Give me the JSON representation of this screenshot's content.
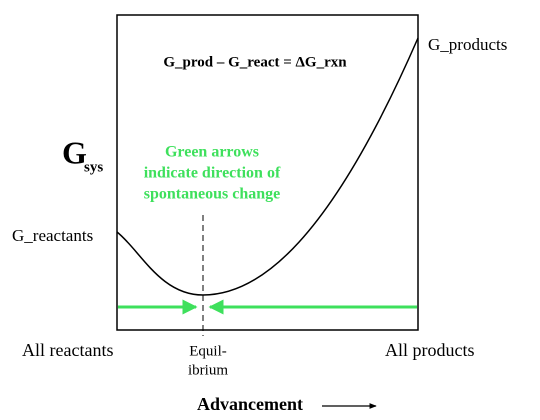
{
  "equation": "G_prod – G_react = ΔG_rxn",
  "y_axis": {
    "symbol": "G",
    "subscript": "sys"
  },
  "curve_labels": {
    "start": "G_reactants",
    "end": "G_products"
  },
  "note": {
    "lines": [
      "Green arrows",
      "indicate direction of",
      "spontaneous change"
    ]
  },
  "x_axis": {
    "left": "All reactants",
    "middle": [
      "Equil-",
      "ibrium"
    ],
    "right": "All products",
    "title": "Advancement"
  }
}
